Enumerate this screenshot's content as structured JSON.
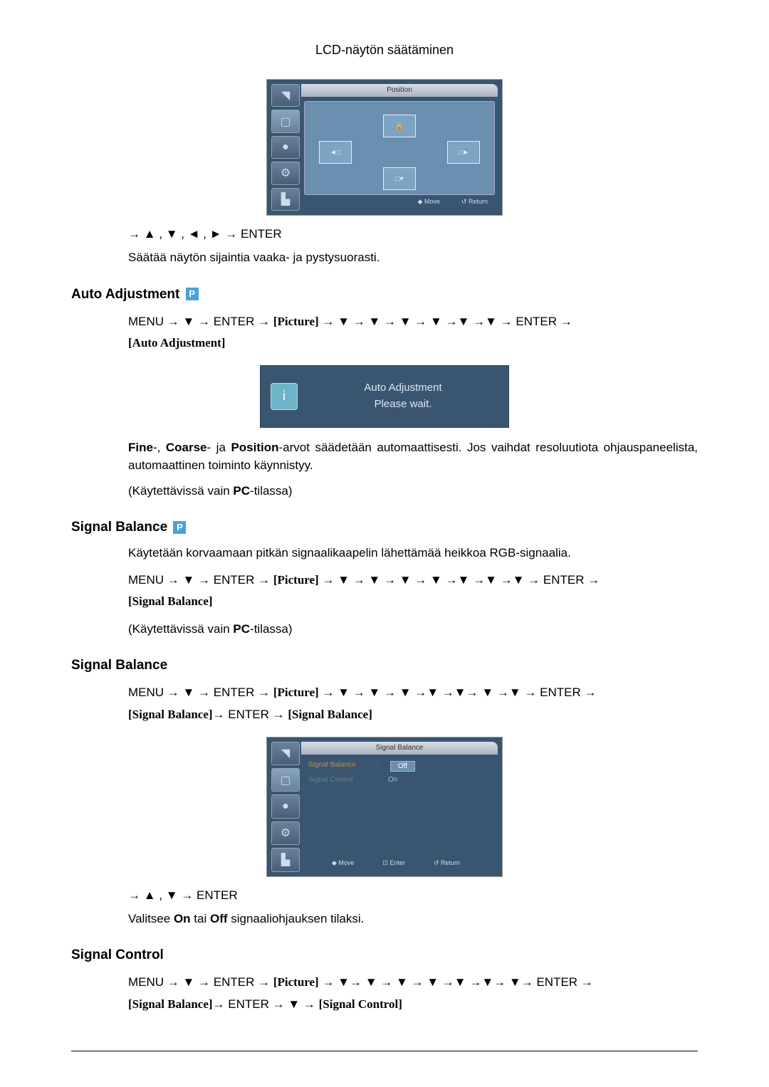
{
  "page_header": "LCD-näytön säätäminen",
  "position_osd": {
    "title": "Position",
    "footer_move": "◆ Move",
    "footer_return": "↺ Return"
  },
  "nav1": "→ ▲ , ▼ , ◄ , ► → ENTER",
  "nav1_desc": "Säätää näytön sijaintia vaaka- ja pystysuorasti.",
  "section_auto_adj": "Auto Adjustment",
  "auto_adj_path_pre": "MENU → ▼ → ENTER → ",
  "auto_adj_path_picture": "[Picture]",
  "auto_adj_path_post": " → ▼ → ▼ → ▼ → ▼ →▼ →▼ → ENTER →",
  "auto_adj_path_end": "[Auto Adjustment]",
  "auto_adj_box_line1": "Auto Adjustment",
  "auto_adj_box_line2": "Please wait.",
  "auto_adj_desc1_a": "Fine",
  "auto_adj_desc1_b": "-, ",
  "auto_adj_desc1_c": "Coarse",
  "auto_adj_desc1_d": "- ja ",
  "auto_adj_desc1_e": "Position",
  "auto_adj_desc1_f": "-arvot säädetään automaattisesti. Jos vaihdat resoluutiota ohjauspaneelista, automaattinen toiminto käynnistyy.",
  "pc_only_pre": "(Käytettävissä vain ",
  "pc_only_bold": "PC",
  "pc_only_post": "-tilassa)",
  "section_sigbal_1": "Signal Balance",
  "sigbal_intro": "Käytetään korvaamaan pitkän signaalikaapelin lähettämää heikkoa RGB-signaalia.",
  "sigbal_path_pre": "MENU → ▼ → ENTER → ",
  "sigbal_path_picture": "[Picture]",
  "sigbal_path_post": " → ▼ → ▼ → ▼ → ▼ →▼ →▼ →▼ → ENTER →",
  "sigbal_path_end": "[Signal Balance]",
  "section_sigbal_2": "Signal Balance",
  "sigbal2_path_pre": "MENU → ▼ → ENTER → ",
  "sigbal2_path_picture": "[Picture]",
  "sigbal2_path_post": " → ▼ → ▼ → ▼ →▼ →▼→ ▼ →▼ → ENTER →",
  "sigbal2_path_end1": "[Signal Balance]",
  "sigbal2_path_mid": "→ ENTER → ",
  "sigbal2_path_end2": "[Signal Balance]",
  "sigbal_osd": {
    "title": "Signal Balance",
    "row1_label": "Signal Balance",
    "row1_val": "Off",
    "row2_label": "Signal Control",
    "row2_val": "On",
    "footer_move": "◆ Move",
    "footer_enter": "⊡ Enter",
    "footer_return": "↺ Return"
  },
  "nav2": "→ ▲ , ▼ → ENTER",
  "nav2_desc_pre": "Valitsee ",
  "nav2_desc_on": "On",
  "nav2_desc_mid": " tai ",
  "nav2_desc_off": "Off",
  "nav2_desc_post": " signaaliohjauksen tilaksi.",
  "section_sigctrl": "Signal Control",
  "sigctrl_path_pre": "MENU → ▼ → ENTER → ",
  "sigctrl_path_picture": "[Picture]",
  "sigctrl_path_post": " → ▼→ ▼ → ▼ → ▼ →▼ →▼→ ▼→ ENTER →",
  "sigctrl_path_end1": "[Signal Balance]",
  "sigctrl_path_mid": "→ ENTER → ▼ → ",
  "sigctrl_path_end2": "[Signal Control]"
}
